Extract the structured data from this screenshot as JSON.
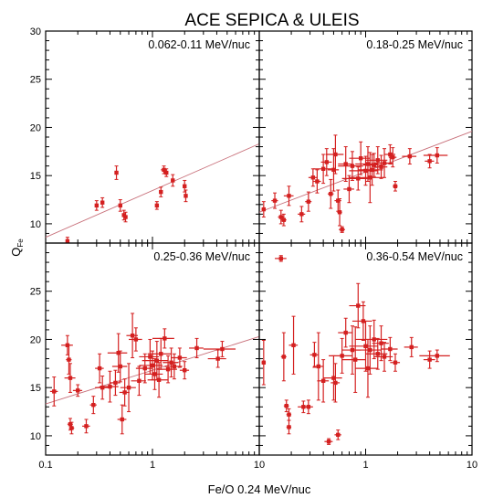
{
  "title": "ACE SEPICA & ULEIS",
  "xlabel": "Fe/O 0.24 MeV/nuc",
  "ylabel_main": "Q",
  "ylabel_sub": "Fe",
  "colors": {
    "data": "#d42020",
    "fit": "#c8707a",
    "axis": "#000000"
  },
  "chart_data": [
    {
      "type": "scatter",
      "panel": "top-left",
      "label": "0.062-0.11 MeV/nuc",
      "xscale": "log",
      "xlim": [
        0.1,
        10
      ],
      "ylim": [
        8,
        30
      ],
      "yticks": [
        10,
        15,
        20,
        25,
        30
      ],
      "fit_line": [
        [
          0.1,
          8.6
        ],
        [
          10,
          18.3
        ]
      ],
      "points": [
        {
          "x": 0.16,
          "y": 8.2,
          "xerr": 0.005,
          "yerr": 0.4
        },
        {
          "x": 0.18,
          "y": 7.7,
          "xerr": 0.005,
          "yerr": 0.3
        },
        {
          "x": 0.3,
          "y": 11.9,
          "xerr": 0.01,
          "yerr": 0.5
        },
        {
          "x": 0.34,
          "y": 12.2,
          "xerr": 0.01,
          "yerr": 0.5
        },
        {
          "x": 0.46,
          "y": 15.3,
          "xerr": 0.01,
          "yerr": 0.7
        },
        {
          "x": 0.5,
          "y": 11.9,
          "xerr": 0.01,
          "yerr": 0.6
        },
        {
          "x": 0.54,
          "y": 10.9,
          "xerr": 0.02,
          "yerr": 0.5
        },
        {
          "x": 0.56,
          "y": 10.7,
          "xerr": 0.02,
          "yerr": 0.5
        },
        {
          "x": 1.1,
          "y": 11.9,
          "xerr": 0.04,
          "yerr": 0.4
        },
        {
          "x": 1.2,
          "y": 13.3,
          "xerr": 0.04,
          "yerr": 0.5
        },
        {
          "x": 1.28,
          "y": 15.6,
          "xerr": 0.08,
          "yerr": 0.4
        },
        {
          "x": 1.35,
          "y": 15.3,
          "xerr": 0.05,
          "yerr": 0.4
        },
        {
          "x": 1.55,
          "y": 14.5,
          "xerr": 0.06,
          "yerr": 0.6
        },
        {
          "x": 2.0,
          "y": 13.9,
          "xerr": 0.05,
          "yerr": 0.6
        },
        {
          "x": 2.05,
          "y": 12.9,
          "xerr": 0.05,
          "yerr": 0.6
        }
      ]
    },
    {
      "type": "scatter",
      "panel": "top-right",
      "label": "0.18-0.25 MeV/nuc",
      "xscale": "log",
      "xlim": [
        0.1,
        10
      ],
      "ylim": [
        8,
        30
      ],
      "yticks": [
        10,
        15,
        20,
        25,
        30
      ],
      "fit_line": [
        [
          0.1,
          11.2
        ],
        [
          10,
          19.6
        ]
      ],
      "points": [
        {
          "x": 0.11,
          "y": 11.5,
          "xerr": 0.005,
          "yerr": 0.8
        },
        {
          "x": 0.14,
          "y": 12.4,
          "xerr": 0.01,
          "yerr": 0.8
        },
        {
          "x": 0.16,
          "y": 10.7,
          "xerr": 0.01,
          "yerr": 0.7
        },
        {
          "x": 0.17,
          "y": 10.4,
          "xerr": 0.01,
          "yerr": 0.6
        },
        {
          "x": 0.19,
          "y": 12.9,
          "xerr": 0.02,
          "yerr": 1.0
        },
        {
          "x": 0.25,
          "y": 11.0,
          "xerr": 0.02,
          "yerr": 0.8
        },
        {
          "x": 0.29,
          "y": 12.3,
          "xerr": 0.02,
          "yerr": 1.0
        },
        {
          "x": 0.32,
          "y": 14.8,
          "xerr": 0.03,
          "yerr": 0.9
        },
        {
          "x": 0.35,
          "y": 14.4,
          "xerr": 0.03,
          "yerr": 1.2
        },
        {
          "x": 0.4,
          "y": 15.7,
          "xerr": 0.08,
          "yerr": 1.5
        },
        {
          "x": 0.43,
          "y": 16.4,
          "xerr": 0.05,
          "yerr": 1.4
        },
        {
          "x": 0.47,
          "y": 13.1,
          "xerr": 0.03,
          "yerr": 1.5
        },
        {
          "x": 0.5,
          "y": 15.6,
          "xerr": 0.06,
          "yerr": 2.2
        },
        {
          "x": 0.52,
          "y": 17.2,
          "xerr": 0.1,
          "yerr": 2.0
        },
        {
          "x": 0.55,
          "y": 12.4,
          "xerr": 0.04,
          "yerr": 1.1
        },
        {
          "x": 0.57,
          "y": 11.2,
          "xerr": 0.03,
          "yerr": 1.4
        },
        {
          "x": 0.6,
          "y": 9.4,
          "xerr": 0.04,
          "yerr": 0.3
        },
        {
          "x": 0.65,
          "y": 16.2,
          "xerr": 0.1,
          "yerr": 1.8
        },
        {
          "x": 0.7,
          "y": 13.6,
          "xerr": 0.08,
          "yerr": 1.4
        },
        {
          "x": 0.75,
          "y": 16.0,
          "xerr": 0.2,
          "yerr": 1.5
        },
        {
          "x": 0.85,
          "y": 14.7,
          "xerr": 0.25,
          "yerr": 1.2
        },
        {
          "x": 0.9,
          "y": 16.8,
          "xerr": 0.2,
          "yerr": 1.7
        },
        {
          "x": 1.0,
          "y": 15.5,
          "xerr": 0.3,
          "yerr": 1.5
        },
        {
          "x": 1.05,
          "y": 16.2,
          "xerr": 0.25,
          "yerr": 1.8
        },
        {
          "x": 1.1,
          "y": 14.8,
          "xerr": 0.4,
          "yerr": 2.6
        },
        {
          "x": 1.15,
          "y": 15.6,
          "xerr": 0.3,
          "yerr": 1.6
        },
        {
          "x": 1.2,
          "y": 16.1,
          "xerr": 0.25,
          "yerr": 1.2
        },
        {
          "x": 1.3,
          "y": 16.6,
          "xerr": 0.3,
          "yerr": 1.4
        },
        {
          "x": 1.4,
          "y": 15.9,
          "xerr": 0.2,
          "yerr": 1.2
        },
        {
          "x": 1.5,
          "y": 16.3,
          "xerr": 0.3,
          "yerr": 1.5
        },
        {
          "x": 1.7,
          "y": 17.2,
          "xerr": 0.2,
          "yerr": 1.0
        },
        {
          "x": 1.8,
          "y": 16.9,
          "xerr": 0.15,
          "yerr": 1.0
        },
        {
          "x": 1.9,
          "y": 13.9,
          "xerr": 0.1,
          "yerr": 0.5
        },
        {
          "x": 2.6,
          "y": 17.0,
          "xerr": 0.4,
          "yerr": 0.8
        },
        {
          "x": 4.0,
          "y": 16.5,
          "xerr": 0.4,
          "yerr": 0.7
        },
        {
          "x": 4.7,
          "y": 17.1,
          "xerr": 1.2,
          "yerr": 0.8
        }
      ]
    },
    {
      "type": "scatter",
      "panel": "bottom-left",
      "label": "0.25-0.36 MeV/nuc",
      "xscale": "log",
      "xlim": [
        0.1,
        10
      ],
      "ylim": [
        8,
        30
      ],
      "yticks": [
        10,
        15,
        20,
        25
      ],
      "fit_line": [
        [
          0.1,
          13.3
        ],
        [
          10,
          20.3
        ]
      ],
      "points": [
        {
          "x": 0.12,
          "y": 14.6,
          "xerr": 0.01,
          "yerr": 1.5
        },
        {
          "x": 0.16,
          "y": 19.4,
          "xerr": 0.02,
          "yerr": 1.0
        },
        {
          "x": 0.165,
          "y": 17.9,
          "xerr": 0.01,
          "yerr": 1.5
        },
        {
          "x": 0.17,
          "y": 16.0,
          "xerr": 0.02,
          "yerr": 1.5
        },
        {
          "x": 0.17,
          "y": 11.2,
          "xerr": 0.01,
          "yerr": 0.6
        },
        {
          "x": 0.175,
          "y": 10.8,
          "xerr": 0.01,
          "yerr": 0.6
        },
        {
          "x": 0.2,
          "y": 14.7,
          "xerr": 0.02,
          "yerr": 0.6
        },
        {
          "x": 0.24,
          "y": 11.0,
          "xerr": 0.02,
          "yerr": 0.7
        },
        {
          "x": 0.28,
          "y": 13.2,
          "xerr": 0.02,
          "yerr": 0.9
        },
        {
          "x": 0.32,
          "y": 17.0,
          "xerr": 0.03,
          "yerr": 1.5
        },
        {
          "x": 0.34,
          "y": 15.0,
          "xerr": 0.05,
          "yerr": 1.2
        },
        {
          "x": 0.4,
          "y": 15.1,
          "xerr": 0.08,
          "yerr": 1.6
        },
        {
          "x": 0.45,
          "y": 15.5,
          "xerr": 0.05,
          "yerr": 1.3
        },
        {
          "x": 0.48,
          "y": 18.6,
          "xerr": 0.1,
          "yerr": 2.0
        },
        {
          "x": 0.5,
          "y": 17.2,
          "xerr": 0.08,
          "yerr": 1.6
        },
        {
          "x": 0.52,
          "y": 11.7,
          "xerr": 0.05,
          "yerr": 1.5
        },
        {
          "x": 0.55,
          "y": 14.5,
          "xerr": 0.06,
          "yerr": 1.4
        },
        {
          "x": 0.6,
          "y": 15.0,
          "xerr": 0.1,
          "yerr": 2.5
        },
        {
          "x": 0.65,
          "y": 20.4,
          "xerr": 0.08,
          "yerr": 2.3
        },
        {
          "x": 0.7,
          "y": 20.0,
          "xerr": 0.1,
          "yerr": 1.2
        },
        {
          "x": 0.75,
          "y": 15.7,
          "xerr": 0.12,
          "yerr": 1.5
        },
        {
          "x": 0.85,
          "y": 17.0,
          "xerr": 0.15,
          "yerr": 1.5
        },
        {
          "x": 0.95,
          "y": 18.2,
          "xerr": 0.2,
          "yerr": 1.8
        },
        {
          "x": 1.0,
          "y": 17.3,
          "xerr": 0.25,
          "yerr": 1.5
        },
        {
          "x": 1.05,
          "y": 16.4,
          "xerr": 0.2,
          "yerr": 1.6
        },
        {
          "x": 1.1,
          "y": 17.8,
          "xerr": 0.3,
          "yerr": 2.0
        },
        {
          "x": 1.15,
          "y": 15.8,
          "xerr": 0.25,
          "yerr": 1.8
        },
        {
          "x": 1.2,
          "y": 18.5,
          "xerr": 0.3,
          "yerr": 1.6
        },
        {
          "x": 1.3,
          "y": 20.1,
          "xerr": 0.3,
          "yerr": 1.0
        },
        {
          "x": 1.4,
          "y": 16.9,
          "xerr": 0.3,
          "yerr": 1.4
        },
        {
          "x": 1.5,
          "y": 17.6,
          "xerr": 0.25,
          "yerr": 1.5
        },
        {
          "x": 1.6,
          "y": 17.2,
          "xerr": 0.3,
          "yerr": 1.3
        },
        {
          "x": 1.8,
          "y": 18.1,
          "xerr": 0.3,
          "yerr": 1.0
        },
        {
          "x": 2.0,
          "y": 16.8,
          "xerr": 0.2,
          "yerr": 0.9
        },
        {
          "x": 2.6,
          "y": 19.1,
          "xerr": 0.4,
          "yerr": 1.0
        },
        {
          "x": 4.1,
          "y": 18.0,
          "xerr": 0.8,
          "yerr": 0.9
        },
        {
          "x": 4.5,
          "y": 19.0,
          "xerr": 1.5,
          "yerr": 0.8
        }
      ]
    },
    {
      "type": "scatter",
      "panel": "bottom-right",
      "label": "0.36-0.54 MeV/nuc",
      "xscale": "log",
      "xlim": [
        0.1,
        10
      ],
      "ylim": [
        8,
        30
      ],
      "yticks": [
        10,
        15,
        20,
        25
      ],
      "fit_line": null,
      "points": [
        {
          "x": 0.11,
          "y": 17.6,
          "xerr": 0.005,
          "yerr": 2.3
        },
        {
          "x": 0.16,
          "y": 28.4,
          "xerr": 0.02,
          "yerr": 0.3
        },
        {
          "x": 0.17,
          "y": 18.2,
          "xerr": 0.01,
          "yerr": 2.5
        },
        {
          "x": 0.18,
          "y": 13.1,
          "xerr": 0.01,
          "yerr": 0.6
        },
        {
          "x": 0.19,
          "y": 10.9,
          "xerr": 0.01,
          "yerr": 0.7
        },
        {
          "x": 0.19,
          "y": 12.2,
          "xerr": 0.01,
          "yerr": 0.6
        },
        {
          "x": 0.21,
          "y": 19.4,
          "xerr": 0.02,
          "yerr": 3.0
        },
        {
          "x": 0.26,
          "y": 13.0,
          "xerr": 0.03,
          "yerr": 0.6
        },
        {
          "x": 0.29,
          "y": 13.0,
          "xerr": 0.03,
          "yerr": 0.7
        },
        {
          "x": 0.33,
          "y": 18.4,
          "xerr": 0.03,
          "yerr": 1.3
        },
        {
          "x": 0.36,
          "y": 17.2,
          "xerr": 0.04,
          "yerr": 3.5
        },
        {
          "x": 0.4,
          "y": 15.7,
          "xerr": 0.05,
          "yerr": 2.2
        },
        {
          "x": 0.45,
          "y": 9.4,
          "xerr": 0.04,
          "yerr": 0.3
        },
        {
          "x": 0.5,
          "y": 16.0,
          "xerr": 0.1,
          "yerr": 2.3
        },
        {
          "x": 0.52,
          "y": 15.5,
          "xerr": 0.05,
          "yerr": 2.0
        },
        {
          "x": 0.55,
          "y": 10.1,
          "xerr": 0.04,
          "yerr": 0.5
        },
        {
          "x": 0.6,
          "y": 18.3,
          "xerr": 0.15,
          "yerr": 1.8
        },
        {
          "x": 0.65,
          "y": 20.7,
          "xerr": 0.1,
          "yerr": 1.5
        },
        {
          "x": 0.75,
          "y": 18.9,
          "xerr": 0.15,
          "yerr": 2.5
        },
        {
          "x": 0.8,
          "y": 17.9,
          "xerr": 0.2,
          "yerr": 3.4
        },
        {
          "x": 0.85,
          "y": 23.5,
          "xerr": 0.15,
          "yerr": 2.3
        },
        {
          "x": 0.95,
          "y": 21.9,
          "xerr": 0.2,
          "yerr": 2.0
        },
        {
          "x": 1.0,
          "y": 19.3,
          "xerr": 0.3,
          "yerr": 2.6
        },
        {
          "x": 1.05,
          "y": 17.0,
          "xerr": 0.25,
          "yerr": 3.0
        },
        {
          "x": 1.1,
          "y": 18.9,
          "xerr": 0.3,
          "yerr": 2.5
        },
        {
          "x": 1.2,
          "y": 20.0,
          "xerr": 0.4,
          "yerr": 2.0
        },
        {
          "x": 1.3,
          "y": 18.5,
          "xerr": 0.3,
          "yerr": 1.6
        },
        {
          "x": 1.4,
          "y": 19.6,
          "xerr": 0.25,
          "yerr": 1.8
        },
        {
          "x": 1.5,
          "y": 18.2,
          "xerr": 0.3,
          "yerr": 1.5
        },
        {
          "x": 1.7,
          "y": 19.0,
          "xerr": 0.3,
          "yerr": 1.2
        },
        {
          "x": 1.9,
          "y": 17.6,
          "xerr": 0.2,
          "yerr": 0.9
        },
        {
          "x": 2.7,
          "y": 19.2,
          "xerr": 0.4,
          "yerr": 1.0
        },
        {
          "x": 4.0,
          "y": 17.9,
          "xerr": 0.5,
          "yerr": 0.9
        },
        {
          "x": 4.7,
          "y": 18.3,
          "xerr": 1.5,
          "yerr": 0.6
        }
      ]
    }
  ],
  "x_tick_labels": [
    "0.1",
    "1",
    "10",
    "0.1",
    "1",
    "10"
  ]
}
